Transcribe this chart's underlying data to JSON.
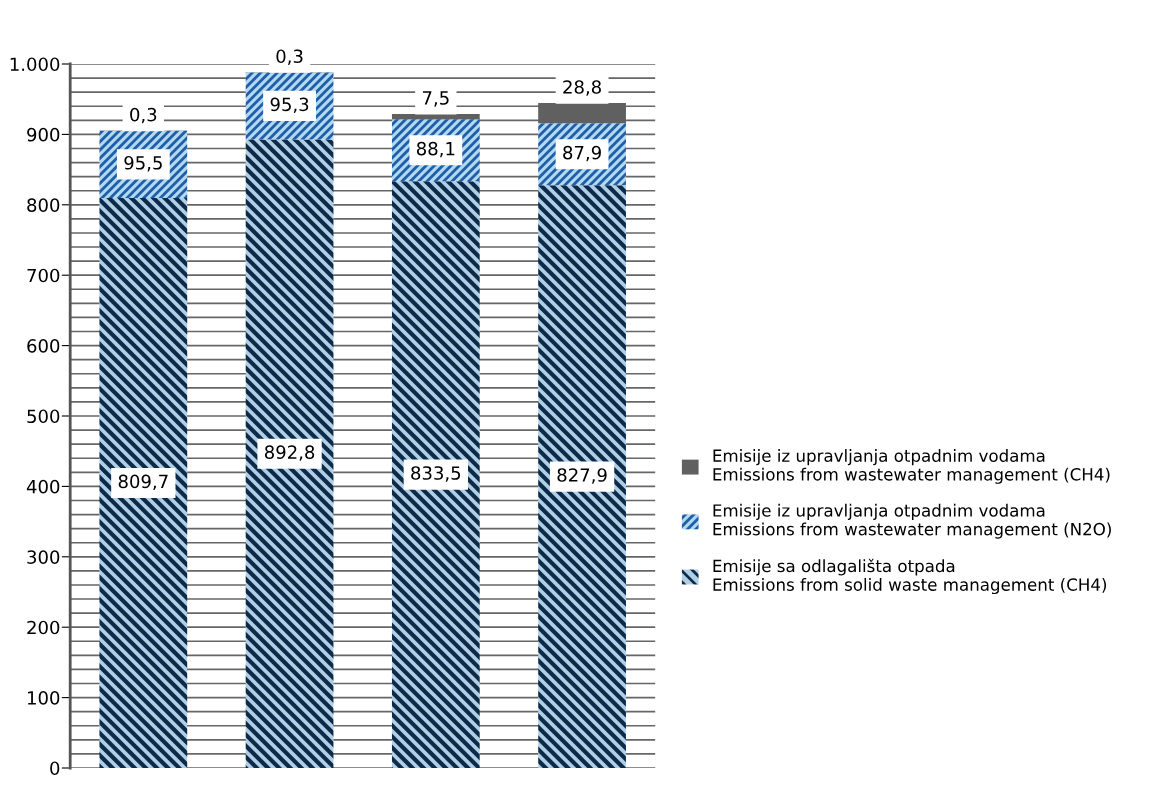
{
  "chart_data": {
    "type": "bar",
    "stacked": true,
    "categories": [
      null,
      null,
      null,
      null
    ],
    "series": [
      {
        "name": "Emisije sa odlagališta otpada\nEmissions from solid waste management (CH4)",
        "color": "#0d2a4a",
        "values": [
          809.7,
          892.8,
          833.5,
          827.9
        ],
        "value_labels": [
          "809,7",
          "892,8",
          "833,5",
          "827,9"
        ]
      },
      {
        "name": "Emisije iz upravljanja otpadnim vodama\nEmissions from wastewater management (N2O)",
        "color": "#1f5fa8",
        "values": [
          95.5,
          95.3,
          88.1,
          87.9
        ],
        "value_labels": [
          "95,5",
          "95,3",
          "88,1",
          "87,9"
        ]
      },
      {
        "name": "Emisije iz upravljanja otpadnim vodama\nEmissions from wastewater management (CH4)",
        "color": "#606060",
        "values": [
          0.3,
          0.3,
          7.5,
          28.8
        ],
        "value_labels": [
          "0,3",
          "0,3",
          "7,5",
          "28,8"
        ]
      }
    ],
    "ylim": [
      0,
      1000
    ],
    "yticks": [
      0,
      {
        "value": 20,
        "label": null
      },
      {
        "value": 40,
        "label": null
      },
      {
        "value": 60,
        "label": null
      },
      {
        "value": 80,
        "label": null
      },
      100,
      {
        "value": 120,
        "label": null
      },
      {
        "value": 140,
        "label": null
      },
      {
        "value": 160,
        "label": null
      },
      {
        "value": 180,
        "label": null
      },
      200,
      {
        "value": 220,
        "label": null
      },
      {
        "value": 240,
        "label": null
      },
      {
        "value": 260,
        "label": null
      },
      {
        "value": 280,
        "label": null
      },
      300,
      {
        "value": 320,
        "label": null
      },
      {
        "value": 340,
        "label": null
      },
      {
        "value": 360,
        "label": null
      },
      {
        "value": 380,
        "label": null
      },
      400,
      {
        "value": 420,
        "label": null
      },
      {
        "value": 440,
        "label": null
      },
      {
        "value": 460,
        "label": null
      },
      {
        "value": 480,
        "label": null
      },
      500,
      {
        "value": 520,
        "label": null
      },
      {
        "value": 540,
        "label": null
      },
      {
        "value": 560,
        "label": null
      },
      {
        "value": 580,
        "label": null
      },
      600,
      {
        "value": 620,
        "label": null
      },
      {
        "value": 640,
        "label": null
      },
      {
        "value": 660,
        "label": null
      },
      {
        "value": 680,
        "label": null
      },
      700,
      {
        "value": 720,
        "label": null
      },
      {
        "value": 740,
        "label": null
      },
      {
        "value": 760,
        "label": null
      },
      {
        "value": 780,
        "label": null
      },
      800,
      {
        "value": 820,
        "label": null
      },
      {
        "value": 840,
        "label": null
      },
      {
        "value": 860,
        "label": null
      },
      {
        "value": 880,
        "label": null
      },
      900,
      {
        "value": 920,
        "label": null
      },
      {
        "value": 940,
        "label": null
      },
      {
        "value": 960,
        "label": null
      },
      {
        "value": 980,
        "label": null
      },
      {
        "value": 1000,
        "label": "1.000"
      }
    ],
    "grid": "y",
    "legend": "right"
  }
}
